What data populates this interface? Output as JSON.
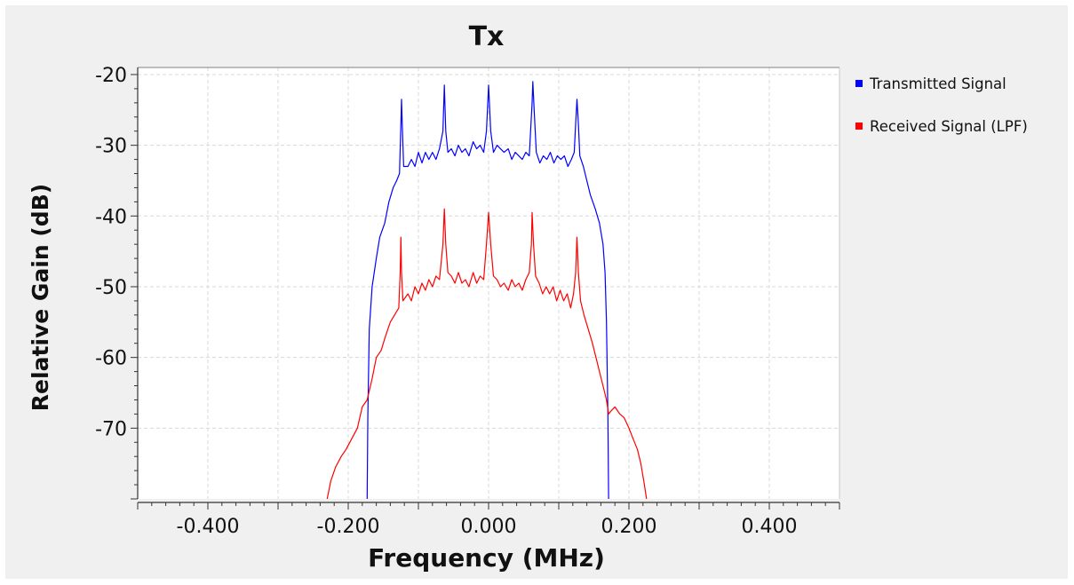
{
  "chart_data": {
    "type": "line",
    "title": "Tx",
    "xlabel": "Frequency (MHz)",
    "ylabel": "Relative Gain (dB)",
    "xlim": [
      -0.5,
      0.5
    ],
    "ylim": [
      -80,
      -19
    ],
    "x_ticks": [
      -0.4,
      -0.2,
      0.0,
      0.2,
      0.4
    ],
    "x_tick_labels": [
      "-0.400",
      "-0.200",
      "0.000",
      "0.200",
      "0.400"
    ],
    "y_ticks": [
      -20,
      -30,
      -40,
      -50,
      -60,
      -70
    ],
    "y_tick_labels": [
      "-20",
      "-30",
      "-40",
      "-50",
      "-60",
      "-70"
    ],
    "grid": true,
    "legend_position": "right",
    "series": [
      {
        "name": "Transmitted Signal",
        "color": "#0000ff",
        "points": [
          [
            -0.173,
            -80
          ],
          [
            -0.172,
            -68
          ],
          [
            -0.17,
            -56
          ],
          [
            -0.166,
            -50
          ],
          [
            -0.16,
            -46
          ],
          [
            -0.155,
            -43
          ],
          [
            -0.148,
            -41
          ],
          [
            -0.142,
            -38
          ],
          [
            -0.136,
            -36
          ],
          [
            -0.131,
            -35
          ],
          [
            -0.127,
            -34
          ],
          [
            -0.125,
            -27
          ],
          [
            -0.124,
            -23.5
          ],
          [
            -0.123,
            -27
          ],
          [
            -0.121,
            -33
          ],
          [
            -0.115,
            -33
          ],
          [
            -0.11,
            -32
          ],
          [
            -0.105,
            -33
          ],
          [
            -0.1,
            -31
          ],
          [
            -0.095,
            -32.5
          ],
          [
            -0.09,
            -31
          ],
          [
            -0.085,
            -32
          ],
          [
            -0.08,
            -31
          ],
          [
            -0.075,
            -32
          ],
          [
            -0.07,
            -30.5
          ],
          [
            -0.065,
            -28
          ],
          [
            -0.063,
            -21.5
          ],
          [
            -0.061,
            -28
          ],
          [
            -0.058,
            -31
          ],
          [
            -0.053,
            -30.5
          ],
          [
            -0.048,
            -31.5
          ],
          [
            -0.043,
            -30
          ],
          [
            -0.038,
            -31
          ],
          [
            -0.033,
            -30.5
          ],
          [
            -0.028,
            -31.5
          ],
          [
            -0.022,
            -29.5
          ],
          [
            -0.017,
            -30.5
          ],
          [
            -0.012,
            -30
          ],
          [
            -0.007,
            -31
          ],
          [
            -0.003,
            -28
          ],
          [
            0.0,
            -21.5
          ],
          [
            0.003,
            -28
          ],
          [
            0.007,
            -31
          ],
          [
            0.012,
            -30
          ],
          [
            0.017,
            -30.5
          ],
          [
            0.022,
            -31
          ],
          [
            0.028,
            -30.5
          ],
          [
            0.033,
            -32
          ],
          [
            0.038,
            -31
          ],
          [
            0.043,
            -31.5
          ],
          [
            0.048,
            -32
          ],
          [
            0.053,
            -31
          ],
          [
            0.058,
            -31.5
          ],
          [
            0.062,
            -24
          ],
          [
            0.063,
            -21
          ],
          [
            0.065,
            -25
          ],
          [
            0.068,
            -31
          ],
          [
            0.073,
            -32.5
          ],
          [
            0.078,
            -31.5
          ],
          [
            0.083,
            -32
          ],
          [
            0.088,
            -31
          ],
          [
            0.093,
            -32.5
          ],
          [
            0.098,
            -31.5
          ],
          [
            0.103,
            -32
          ],
          [
            0.108,
            -31.5
          ],
          [
            0.113,
            -33
          ],
          [
            0.118,
            -32
          ],
          [
            0.122,
            -31
          ],
          [
            0.124,
            -27
          ],
          [
            0.126,
            -23.5
          ],
          [
            0.128,
            -27
          ],
          [
            0.13,
            -31.5
          ],
          [
            0.135,
            -33
          ],
          [
            0.14,
            -35
          ],
          [
            0.145,
            -37
          ],
          [
            0.152,
            -39
          ],
          [
            0.158,
            -41
          ],
          [
            0.163,
            -44
          ],
          [
            0.166,
            -48
          ],
          [
            0.168,
            -55
          ],
          [
            0.17,
            -68
          ],
          [
            0.171,
            -80
          ]
        ]
      },
      {
        "name": "Received Signal (LPF)",
        "color": "#ff0000",
        "points": [
          [
            -0.23,
            -80
          ],
          [
            -0.225,
            -77.5
          ],
          [
            -0.218,
            -75.5
          ],
          [
            -0.21,
            -74
          ],
          [
            -0.203,
            -73
          ],
          [
            -0.195,
            -71.5
          ],
          [
            -0.187,
            -70
          ],
          [
            -0.18,
            -67
          ],
          [
            -0.173,
            -66
          ],
          [
            -0.166,
            -63
          ],
          [
            -0.16,
            -60
          ],
          [
            -0.153,
            -59
          ],
          [
            -0.147,
            -57
          ],
          [
            -0.14,
            -55
          ],
          [
            -0.134,
            -54
          ],
          [
            -0.128,
            -53
          ],
          [
            -0.126,
            -48
          ],
          [
            -0.125,
            -43
          ],
          [
            -0.124,
            -48
          ],
          [
            -0.122,
            -52
          ],
          [
            -0.115,
            -51
          ],
          [
            -0.11,
            -52
          ],
          [
            -0.105,
            -50
          ],
          [
            -0.1,
            -51
          ],
          [
            -0.095,
            -49.5
          ],
          [
            -0.09,
            -50.5
          ],
          [
            -0.085,
            -49
          ],
          [
            -0.08,
            -50
          ],
          [
            -0.075,
            -48.5
          ],
          [
            -0.07,
            -49
          ],
          [
            -0.065,
            -44
          ],
          [
            -0.063,
            -39
          ],
          [
            -0.061,
            -44
          ],
          [
            -0.058,
            -48
          ],
          [
            -0.053,
            -48.5
          ],
          [
            -0.048,
            -49.5
          ],
          [
            -0.043,
            -48
          ],
          [
            -0.038,
            -49.5
          ],
          [
            -0.033,
            -49
          ],
          [
            -0.028,
            -50
          ],
          [
            -0.022,
            -48
          ],
          [
            -0.017,
            -49.5
          ],
          [
            -0.012,
            -48.5
          ],
          [
            -0.007,
            -49
          ],
          [
            -0.003,
            -44
          ],
          [
            0.0,
            -39.5
          ],
          [
            0.003,
            -44
          ],
          [
            0.007,
            -48.5
          ],
          [
            0.012,
            -49
          ],
          [
            0.017,
            -50
          ],
          [
            0.022,
            -49.5
          ],
          [
            0.028,
            -50.5
          ],
          [
            0.033,
            -49
          ],
          [
            0.038,
            -50
          ],
          [
            0.043,
            -49.5
          ],
          [
            0.048,
            -50.5
          ],
          [
            0.053,
            -49
          ],
          [
            0.058,
            -48
          ],
          [
            0.061,
            -44
          ],
          [
            0.062,
            -39.5
          ],
          [
            0.064,
            -44
          ],
          [
            0.067,
            -48.5
          ],
          [
            0.072,
            -49.5
          ],
          [
            0.077,
            -51
          ],
          [
            0.082,
            -50
          ],
          [
            0.087,
            -51
          ],
          [
            0.092,
            -50
          ],
          [
            0.097,
            -52
          ],
          [
            0.102,
            -50.5
          ],
          [
            0.107,
            -52
          ],
          [
            0.112,
            -51
          ],
          [
            0.117,
            -53
          ],
          [
            0.121,
            -51
          ],
          [
            0.124,
            -48
          ],
          [
            0.126,
            -43
          ],
          [
            0.128,
            -48
          ],
          [
            0.131,
            -52
          ],
          [
            0.136,
            -54
          ],
          [
            0.142,
            -56
          ],
          [
            0.148,
            -58
          ],
          [
            0.153,
            -60
          ],
          [
            0.158,
            -62
          ],
          [
            0.163,
            -64
          ],
          [
            0.168,
            -66
          ],
          [
            0.171,
            -68
          ],
          [
            0.175,
            -67.5
          ],
          [
            0.18,
            -67
          ],
          [
            0.187,
            -68
          ],
          [
            0.193,
            -68.5
          ],
          [
            0.2,
            -70
          ],
          [
            0.206,
            -71.5
          ],
          [
            0.212,
            -73
          ],
          [
            0.217,
            -75
          ],
          [
            0.222,
            -78
          ],
          [
            0.225,
            -80
          ]
        ]
      }
    ]
  }
}
